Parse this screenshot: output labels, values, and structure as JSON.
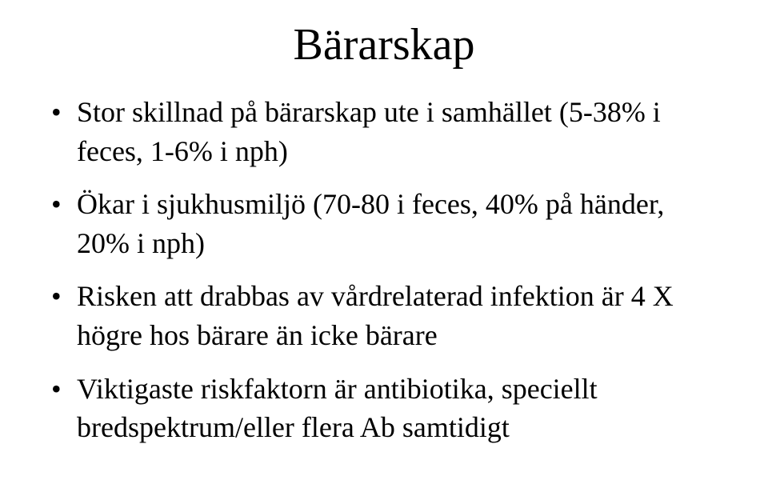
{
  "slide": {
    "title": "Bärarskap",
    "title_fontsize": 56,
    "bullet_fontsize": 36,
    "text_color": "#000000",
    "background_color": "#ffffff",
    "bullets": [
      "Stor skillnad på bärarskap ute i samhället (5-38% i feces, 1-6% i nph)",
      "Ökar i sjukhusmiljö (70-80 i feces, 40% på händer, 20% i nph)",
      "Risken att drabbas av vårdrelaterad infektion är 4 X högre hos bärare än icke bärare",
      "Viktigaste riskfaktorn är antibiotika, speciellt bredspektrum/eller flera Ab samtidigt"
    ]
  }
}
